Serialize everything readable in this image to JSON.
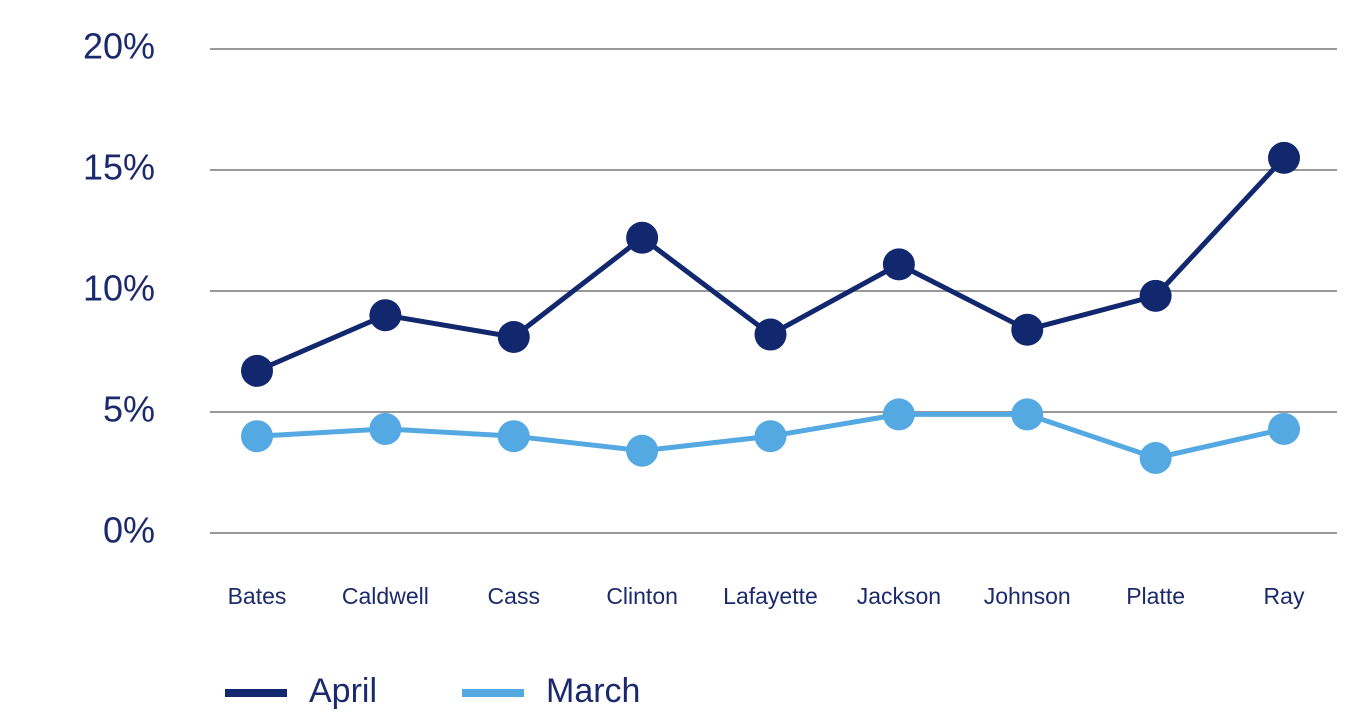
{
  "chart_data": {
    "type": "line",
    "categories": [
      "Bates",
      "Caldwell",
      "Cass",
      "Clinton",
      "Lafayette",
      "Jackson",
      "Johnson",
      "Platte",
      "Ray"
    ],
    "series": [
      {
        "name": "April",
        "color": "#12286e",
        "values": [
          6.7,
          9.0,
          8.1,
          12.2,
          8.2,
          11.1,
          8.4,
          9.8,
          15.5
        ]
      },
      {
        "name": "March",
        "color": "#55a9e2",
        "values": [
          4.0,
          4.3,
          4.0,
          3.4,
          4.0,
          4.9,
          4.9,
          3.1,
          4.3
        ]
      }
    ],
    "ylim": [
      0,
      20
    ],
    "yticks": [
      {
        "value": 0,
        "label": "0%"
      },
      {
        "value": 5,
        "label": "5%"
      },
      {
        "value": 10,
        "label": "10%"
      },
      {
        "value": 15,
        "label": "15%"
      },
      {
        "value": 20,
        "label": "20%"
      }
    ],
    "grid": true,
    "legend": "bottom"
  }
}
